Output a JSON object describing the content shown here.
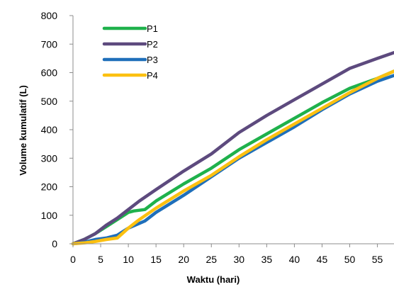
{
  "chart_data": {
    "type": "line",
    "title": "",
    "xlabel": "Waktu (hari)",
    "ylabel": "Volume kumulatif (L)",
    "xlim": [
      0,
      58
    ],
    "ylim": [
      0,
      800
    ],
    "xticks": [
      0,
      5,
      10,
      15,
      20,
      25,
      30,
      35,
      40,
      45,
      50,
      55
    ],
    "yticks": [
      0,
      100,
      200,
      300,
      400,
      500,
      600,
      700,
      800
    ],
    "grid": false,
    "legend_position": "top-left",
    "series": [
      {
        "name": "P1",
        "color": "#1fb14c",
        "x": [
          0,
          2,
          4,
          6,
          8,
          10,
          11,
          13,
          15,
          20,
          25,
          30,
          35,
          40,
          45,
          50,
          55,
          58
        ],
        "y": [
          0,
          15,
          35,
          60,
          85,
          110,
          115,
          120,
          150,
          210,
          265,
          330,
          385,
          440,
          495,
          545,
          580,
          605
        ]
      },
      {
        "name": "P2",
        "color": "#5d4a7e",
        "x": [
          0,
          2,
          4,
          6,
          8,
          10,
          12,
          15,
          20,
          25,
          30,
          35,
          40,
          45,
          50,
          55,
          58
        ],
        "y": [
          0,
          15,
          35,
          65,
          90,
          120,
          150,
          190,
          255,
          315,
          390,
          450,
          505,
          560,
          615,
          650,
          670
        ]
      },
      {
        "name": "P3",
        "color": "#1f6fba",
        "x": [
          0,
          2,
          4,
          6,
          8,
          10,
          13,
          15,
          20,
          25,
          30,
          35,
          40,
          45,
          50,
          55,
          58
        ],
        "y": [
          0,
          5,
          15,
          20,
          30,
          55,
          80,
          110,
          170,
          235,
          300,
          355,
          410,
          470,
          525,
          570,
          590
        ]
      },
      {
        "name": "P4",
        "color": "#fcc010",
        "x": [
          0,
          2,
          4,
          6,
          8,
          10,
          12,
          15,
          20,
          25,
          30,
          35,
          40,
          45,
          50,
          55,
          58
        ],
        "y": [
          0,
          3,
          8,
          15,
          20,
          55,
          85,
          125,
          185,
          240,
          305,
          365,
          420,
          475,
          530,
          580,
          605
        ]
      }
    ]
  }
}
